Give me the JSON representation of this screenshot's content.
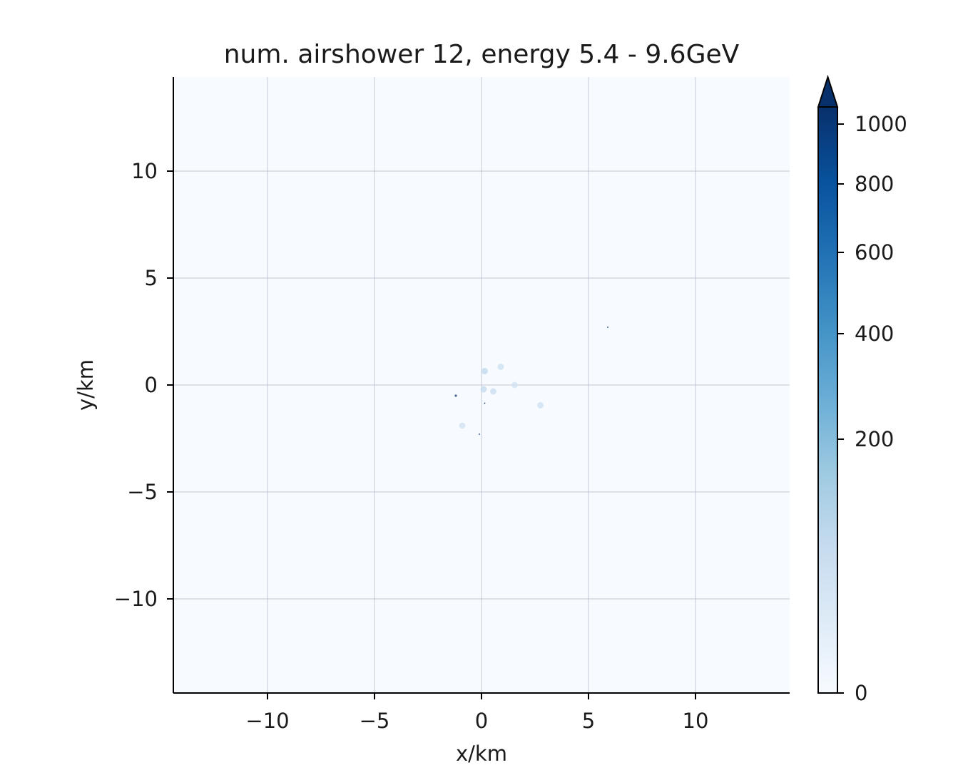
{
  "chart_data": {
    "type": "heatmap",
    "title": "num. airshower 12, energy 5.4 - 9.6GeV",
    "xlabel": "x/km",
    "ylabel": "y/km",
    "xlim": [
      -14.4,
      14.4
    ],
    "ylim": [
      -14.4,
      14.4
    ],
    "xticks": [
      -10,
      -5,
      0,
      5,
      10
    ],
    "yticks": [
      -10,
      -5,
      0,
      5,
      10
    ],
    "xtick_labels": [
      "−10",
      "−5",
      "0",
      "5",
      "10"
    ],
    "ytick_labels": [
      "−10",
      "−5",
      "0",
      "5",
      "10"
    ],
    "grid": true,
    "colormap": "Blues",
    "colorbar": {
      "ticks": [
        0,
        200,
        400,
        600,
        800,
        1000
      ],
      "tick_labels": [
        "0",
        "200",
        "400",
        "600",
        "800",
        "1000"
      ],
      "extend": "max"
    },
    "background_color": "#f7fbff",
    "spots": [
      {
        "x": 0.9,
        "y": 0.85,
        "value": 60
      },
      {
        "x": 0.15,
        "y": 0.65,
        "value": 90
      },
      {
        "x": 1.55,
        "y": 0.0,
        "value": 45
      },
      {
        "x": 0.55,
        "y": -0.3,
        "value": 70
      },
      {
        "x": 0.1,
        "y": -0.2,
        "value": 80
      },
      {
        "x": 2.75,
        "y": -0.95,
        "value": 60
      },
      {
        "x": -0.9,
        "y": -1.9,
        "value": 55
      },
      {
        "x": -1.2,
        "y": -0.5,
        "value": 500
      },
      {
        "x": 0.15,
        "y": -0.85,
        "value": 1000
      },
      {
        "x": -0.1,
        "y": -2.3,
        "value": 1000
      },
      {
        "x": 5.9,
        "y": 2.7,
        "value": 1000
      }
    ]
  }
}
